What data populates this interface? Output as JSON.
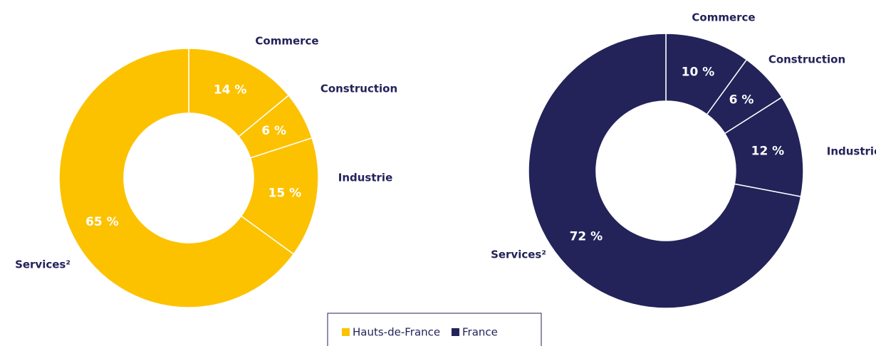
{
  "chart_data": [
    {
      "type": "pie",
      "donut": true,
      "categories": [
        "Commerce",
        "Construction",
        "Industrie",
        "Services²"
      ],
      "series": [
        {
          "name": "Hauts-de-France",
          "color": "#fcc200",
          "values": [
            14,
            6,
            15,
            65
          ],
          "value_labels": [
            "14 %",
            "6 %",
            "15 %",
            "65 %"
          ]
        }
      ]
    },
    {
      "type": "pie",
      "donut": true,
      "categories": [
        "Commerce",
        "Construction",
        "Industrie",
        "Services²"
      ],
      "series": [
        {
          "name": "France",
          "color": "#23235a",
          "values": [
            10,
            6,
            12,
            72
          ],
          "value_labels": [
            "10 %",
            "6 %",
            "12 %",
            "72 %"
          ]
        }
      ]
    }
  ]
}
